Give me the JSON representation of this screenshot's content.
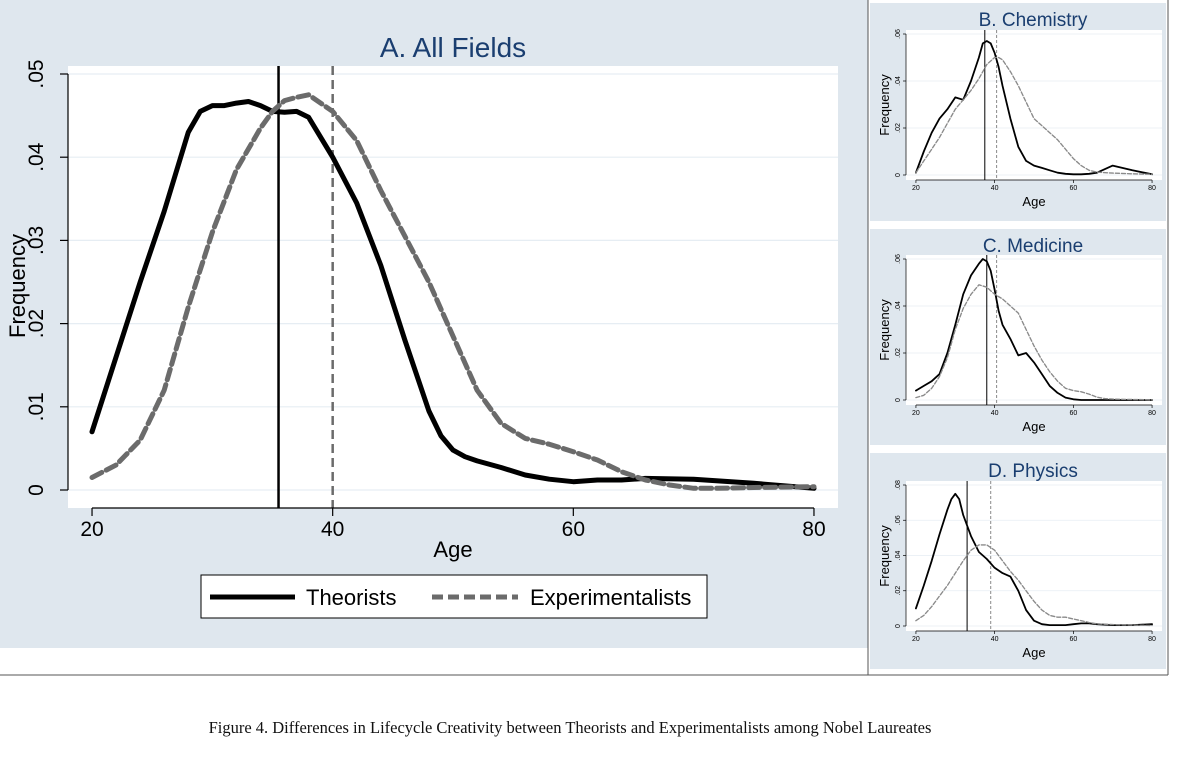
{
  "caption": "Figure 4. Differences in Lifecycle Creativity between Theorists and Experimentalists among Nobel Laureates",
  "colors": {
    "panel_bg": "#dfe7ee",
    "plot_bg": "#ffffff",
    "grid": "#e6edf3",
    "theorists": "#000000",
    "experimentalists_main": "#6b6b6b",
    "experimentalists_small": "#8a8a8a"
  },
  "chart_data": [
    {
      "id": "all-fields",
      "type": "line",
      "title": "A. All Fields",
      "xlabel": "Age",
      "ylabel": "Frequency",
      "xlim": [
        19,
        81
      ],
      "ylim": [
        0,
        0.05
      ],
      "xticks": [
        20,
        40,
        60,
        80
      ],
      "xtick_labels": [
        "20",
        "40",
        "60",
        "80"
      ],
      "yticks": [
        0,
        0.01,
        0.02,
        0.03,
        0.04,
        0.05
      ],
      "ytick_labels": [
        "0",
        ".01",
        ".02",
        ".03",
        ".04",
        ".05"
      ],
      "grid": true,
      "legend": {
        "position": "bottom",
        "entries": [
          "Theorists",
          "Experimentalists"
        ]
      },
      "vlines": [
        {
          "series": "Theorists",
          "x": 35.5
        },
        {
          "series": "Experimentalists",
          "x": 40
        }
      ],
      "series": [
        {
          "name": "Theorists",
          "style": "solid",
          "x": [
            20,
            22,
            24,
            26,
            28,
            29,
            30,
            31,
            32,
            33,
            34,
            35,
            36,
            37,
            38,
            40,
            42,
            44,
            46,
            48,
            49,
            50,
            51,
            52,
            54,
            56,
            58,
            60,
            62,
            64,
            66,
            70,
            75,
            80
          ],
          "y": [
            0.007,
            0.016,
            0.025,
            0.0335,
            0.043,
            0.0455,
            0.0462,
            0.0462,
            0.0465,
            0.0467,
            0.0462,
            0.0455,
            0.0454,
            0.0455,
            0.0448,
            0.04,
            0.0345,
            0.027,
            0.018,
            0.0095,
            0.0065,
            0.0048,
            0.004,
            0.0035,
            0.0027,
            0.0018,
            0.0013,
            0.001,
            0.0012,
            0.0012,
            0.0014,
            0.0013,
            0.0008,
            0.0002
          ]
        },
        {
          "name": "Experimentalists",
          "style": "dashed",
          "x": [
            20,
            22,
            24,
            26,
            28,
            30,
            32,
            34,
            35,
            36,
            37,
            38,
            40,
            42,
            44,
            46,
            48,
            50,
            52,
            54,
            56,
            58,
            60,
            62,
            64,
            66,
            68,
            70,
            72,
            75,
            80
          ],
          "y": [
            0.0015,
            0.003,
            0.006,
            0.012,
            0.022,
            0.031,
            0.0385,
            0.0435,
            0.0455,
            0.0468,
            0.0472,
            0.0475,
            0.0455,
            0.042,
            0.036,
            0.0305,
            0.025,
            0.0185,
            0.012,
            0.008,
            0.0062,
            0.0055,
            0.0046,
            0.0036,
            0.0022,
            0.0012,
            0.0006,
            0.0002,
            0.0002,
            0.0003,
            0.0004
          ]
        }
      ]
    },
    {
      "id": "chemistry",
      "type": "line",
      "title": "B. Chemistry",
      "xlabel": "Age",
      "ylabel": "Frequency",
      "xlim": [
        19,
        81
      ],
      "ylim": [
        0,
        0.06
      ],
      "xticks": [
        20,
        40,
        60,
        80
      ],
      "xtick_labels": [
        "20",
        "40",
        "60",
        "80"
      ],
      "yticks": [
        0,
        0.02,
        0.04,
        0.06
      ],
      "ytick_labels": [
        "0",
        ".02",
        ".04",
        ".06"
      ],
      "grid": true,
      "vlines": [
        {
          "series": "Theorists",
          "x": 37.5
        },
        {
          "series": "Experimentalists",
          "x": 40.5
        }
      ],
      "series": [
        {
          "name": "Theorists",
          "style": "solid",
          "x": [
            20,
            22,
            24,
            26,
            28,
            30,
            32,
            34,
            36,
            37,
            38,
            39,
            40,
            41,
            42,
            44,
            46,
            48,
            50,
            52,
            54,
            56,
            58,
            60,
            62,
            64,
            66,
            70,
            75,
            80
          ],
          "y": [
            0.001,
            0.01,
            0.018,
            0.024,
            0.028,
            0.033,
            0.032,
            0.04,
            0.05,
            0.056,
            0.057,
            0.056,
            0.052,
            0.046,
            0.038,
            0.024,
            0.012,
            0.006,
            0.004,
            0.003,
            0.002,
            0.001,
            0.0005,
            0.0003,
            0.0003,
            0.0005,
            0.001,
            0.004,
            0.002,
            0.0003
          ]
        },
        {
          "name": "Experimentalists",
          "style": "dashed",
          "x": [
            20,
            22,
            24,
            26,
            28,
            30,
            32,
            34,
            36,
            38,
            40,
            41,
            42,
            44,
            46,
            48,
            50,
            52,
            54,
            56,
            58,
            60,
            62,
            64,
            66,
            70,
            75,
            80
          ],
          "y": [
            0.001,
            0.006,
            0.011,
            0.016,
            0.022,
            0.028,
            0.032,
            0.036,
            0.041,
            0.047,
            0.05,
            0.05,
            0.049,
            0.044,
            0.038,
            0.031,
            0.024,
            0.021,
            0.018,
            0.015,
            0.011,
            0.007,
            0.004,
            0.002,
            0.0012,
            0.0008,
            0.0005,
            0.0003
          ]
        }
      ]
    },
    {
      "id": "medicine",
      "type": "line",
      "title": "C. Medicine",
      "xlabel": "Age",
      "ylabel": "Frequency",
      "xlim": [
        19,
        81
      ],
      "ylim": [
        0,
        0.06
      ],
      "xticks": [
        20,
        40,
        60,
        80
      ],
      "xtick_labels": [
        "20",
        "40",
        "60",
        "80"
      ],
      "yticks": [
        0,
        0.02,
        0.04,
        0.06
      ],
      "ytick_labels": [
        "0",
        ".02",
        ".04",
        ".06"
      ],
      "grid": true,
      "vlines": [
        {
          "series": "Theorists",
          "x": 38
        },
        {
          "series": "Experimentalists",
          "x": 40.5
        }
      ],
      "series": [
        {
          "name": "Theorists",
          "style": "solid",
          "x": [
            20,
            22,
            24,
            26,
            28,
            30,
            32,
            34,
            36,
            37,
            38,
            39,
            40,
            41,
            42,
            44,
            46,
            48,
            50,
            52,
            54,
            56,
            58,
            60,
            62,
            64,
            66,
            70,
            75,
            80
          ],
          "y": [
            0.004,
            0.006,
            0.008,
            0.011,
            0.02,
            0.032,
            0.045,
            0.053,
            0.058,
            0.06,
            0.059,
            0.055,
            0.047,
            0.038,
            0.032,
            0.026,
            0.019,
            0.02,
            0.016,
            0.011,
            0.006,
            0.003,
            0.001,
            0.0003,
            0,
            0,
            0,
            0,
            0,
            0
          ]
        },
        {
          "name": "Experimentalists",
          "style": "dashed",
          "x": [
            20,
            22,
            24,
            26,
            28,
            30,
            32,
            34,
            36,
            38,
            40,
            42,
            44,
            46,
            48,
            50,
            52,
            54,
            56,
            58,
            60,
            62,
            64,
            66,
            68,
            70,
            75,
            80
          ],
          "y": [
            0.001,
            0.002,
            0.005,
            0.01,
            0.018,
            0.03,
            0.039,
            0.045,
            0.049,
            0.048,
            0.045,
            0.043,
            0.04,
            0.037,
            0.03,
            0.023,
            0.017,
            0.012,
            0.008,
            0.005,
            0.004,
            0.0035,
            0.0025,
            0.0012,
            0.0006,
            0.0004,
            0.0002,
            0.0001
          ]
        }
      ]
    },
    {
      "id": "physics",
      "type": "line",
      "title": "D. Physics",
      "xlabel": "Age",
      "ylabel": "Frequency",
      "xlim": [
        19,
        81
      ],
      "ylim": [
        0,
        0.08
      ],
      "xticks": [
        20,
        40,
        60,
        80
      ],
      "xtick_labels": [
        "20",
        "40",
        "60",
        "80"
      ],
      "yticks": [
        0,
        0.02,
        0.04,
        0.06,
        0.08
      ],
      "ytick_labels": [
        "0",
        ".02",
        ".04",
        ".06",
        ".08"
      ],
      "grid": true,
      "vlines": [
        {
          "series": "Theorists",
          "x": 33
        },
        {
          "series": "Experimentalists",
          "x": 39
        }
      ],
      "series": [
        {
          "name": "Theorists",
          "style": "solid",
          "x": [
            20,
            22,
            24,
            26,
            28,
            29,
            30,
            31,
            32,
            34,
            36,
            38,
            40,
            42,
            44,
            46,
            48,
            50,
            52,
            54,
            56,
            58,
            60,
            62,
            64,
            66,
            70,
            75,
            80
          ],
          "y": [
            0.01,
            0.023,
            0.037,
            0.052,
            0.066,
            0.072,
            0.075,
            0.072,
            0.063,
            0.051,
            0.042,
            0.038,
            0.033,
            0.03,
            0.028,
            0.02,
            0.009,
            0.003,
            0.001,
            0.0005,
            0.0005,
            0.0005,
            0.001,
            0.0015,
            0.0015,
            0.001,
            0.0005,
            0.0005,
            0.001
          ]
        },
        {
          "name": "Experimentalists",
          "style": "dashed",
          "x": [
            20,
            22,
            24,
            26,
            28,
            30,
            32,
            34,
            36,
            38,
            40,
            42,
            44,
            46,
            48,
            50,
            52,
            54,
            56,
            58,
            60,
            62,
            64,
            66,
            70,
            75,
            80
          ],
          "y": [
            0.003,
            0.006,
            0.011,
            0.017,
            0.023,
            0.03,
            0.037,
            0.043,
            0.046,
            0.046,
            0.043,
            0.037,
            0.031,
            0.026,
            0.02,
            0.014,
            0.009,
            0.006,
            0.005,
            0.005,
            0.004,
            0.003,
            0.002,
            0.0012,
            0.0008,
            0.0005,
            0.0003
          ]
        }
      ]
    }
  ]
}
